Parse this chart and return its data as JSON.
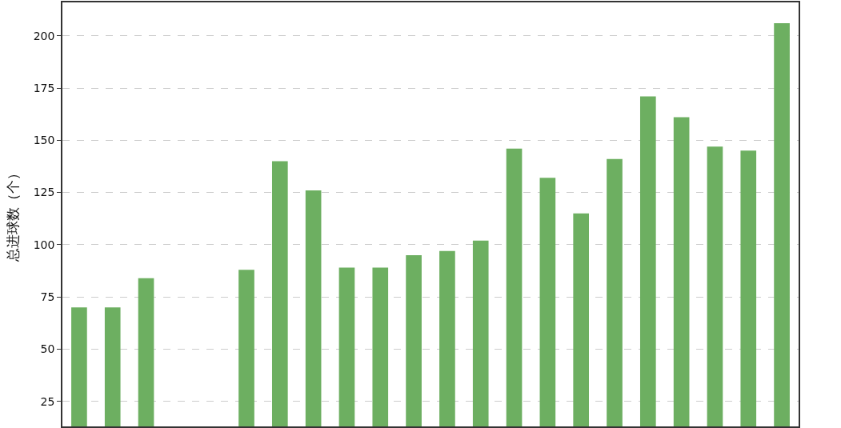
{
  "chart_data": {
    "type": "bar",
    "ylabel": "总进球数（个）",
    "categories": [
      null,
      null,
      null,
      null,
      null,
      null,
      null,
      null,
      null,
      null,
      null,
      null,
      null,
      null,
      null,
      null,
      null,
      null,
      null,
      null,
      null,
      null
    ],
    "values": [
      70,
      70,
      84,
      null,
      null,
      88,
      140,
      126,
      89,
      89,
      95,
      97,
      102,
      146,
      132,
      115,
      141,
      171,
      161,
      147,
      145,
      206
    ],
    "color": "#6daf61",
    "ylim": [
      13,
      216
    ],
    "yticks": [
      25,
      50,
      75,
      100,
      125,
      150,
      175,
      200
    ],
    "grid": "y",
    "tick_labels": "y"
  }
}
